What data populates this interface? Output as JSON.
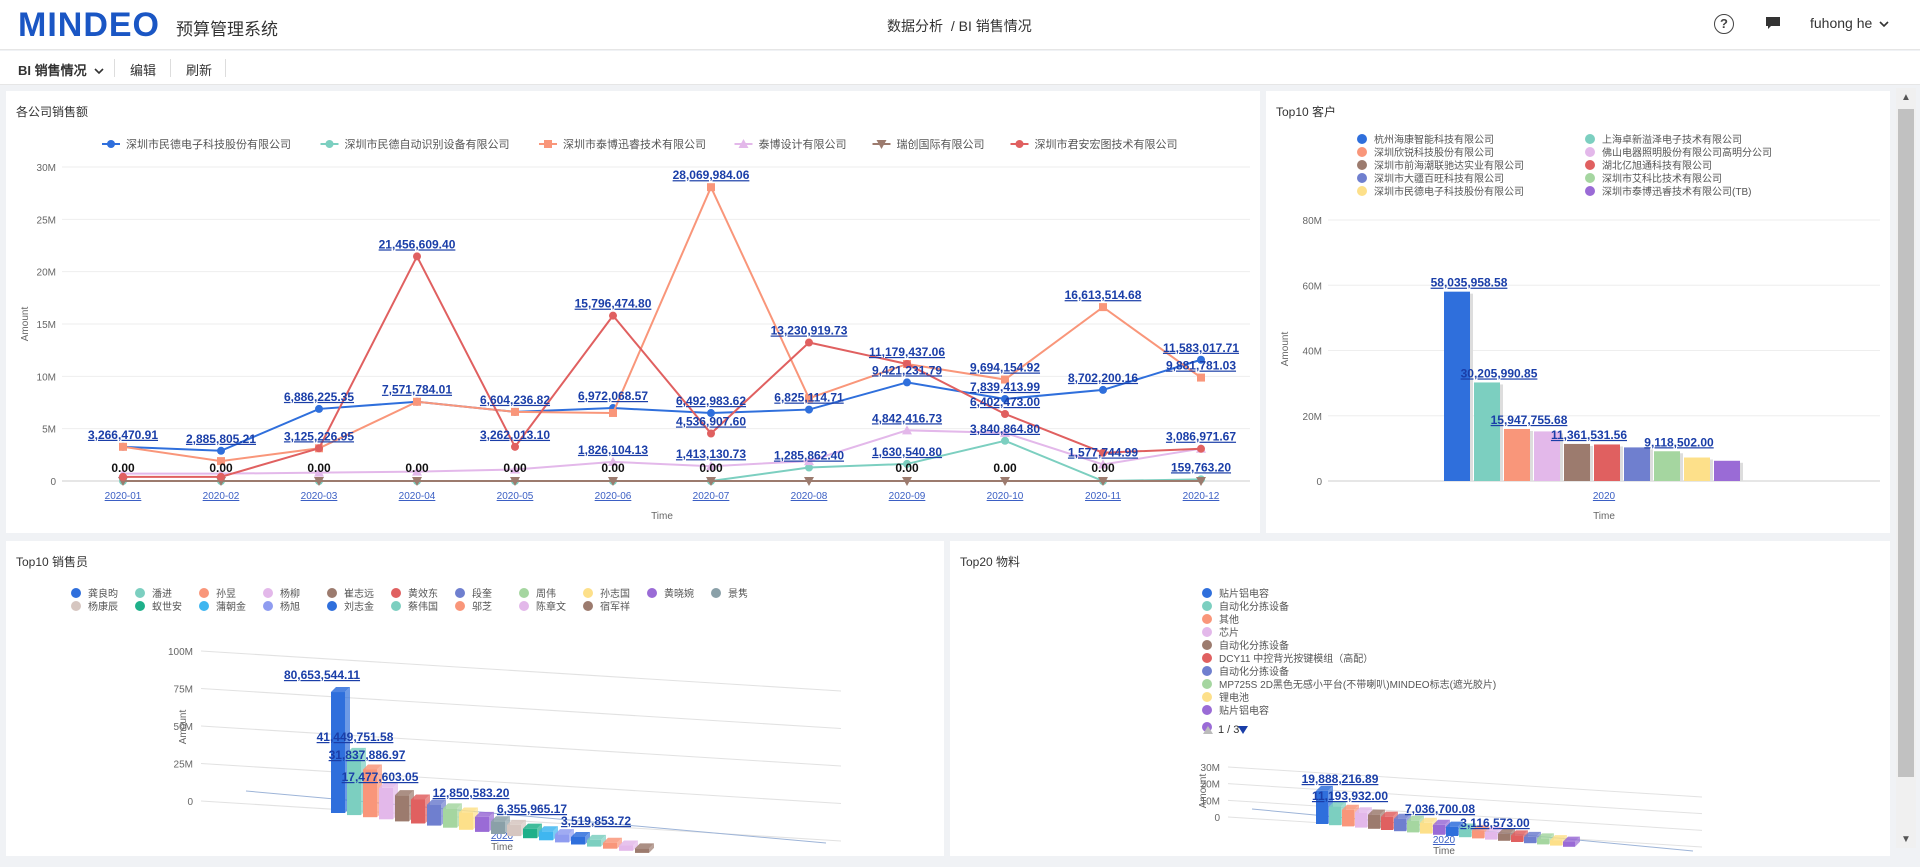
{
  "header": {
    "logo": "MINDEO",
    "system_name": "预算管理系统",
    "breadcrumb": [
      "数据分析",
      "/ BI 销售情况"
    ],
    "user": "fuhong he"
  },
  "toolbar": {
    "dropdown_label": "BI 销售情况",
    "edit_label": "编辑",
    "refresh_label": "刷新"
  },
  "panels": {
    "company_sales_title": "各公司销售额",
    "top10_customers_title": "Top10 客户",
    "top10_sales_title": "Top10 销售员",
    "top20_material_title": "Top20 物料"
  },
  "material_pager": "1 / 3",
  "colors": {
    "accent": "#1a56c4",
    "value_label": "#1a3ea8"
  },
  "chart_data": [
    {
      "type": "line",
      "title": "各公司销售额",
      "xlabel": "Time",
      "ylabel": "Amount",
      "ylim": [
        0,
        30000000
      ],
      "yticks": [
        "0",
        "5M",
        "10M",
        "15M",
        "20M",
        "25M",
        "30M"
      ],
      "categories": [
        "2020-01",
        "2020-02",
        "2020-03",
        "2020-04",
        "2020-05",
        "2020-06",
        "2020-07",
        "2020-08",
        "2020-09",
        "2020-10",
        "2020-11",
        "2020-12"
      ],
      "legend_position": "top",
      "series": [
        {
          "name": "深圳市民德电子科技股份有限公司",
          "color": "#2f6fdc",
          "marker": "circle",
          "values": [
            3266470.91,
            2885805.21,
            6886225.35,
            7571784.01,
            6604236.82,
            6972068.57,
            6492983.62,
            6825114.71,
            9421231.79,
            7839413.99,
            8702200.16,
            11583017.71
          ]
        },
        {
          "name": "深圳市民德自动识别设备有限公司",
          "color": "#7ccfc0",
          "marker": "circle",
          "values": [
            0,
            0,
            0,
            0,
            0,
            0,
            0,
            1285862.4,
            1630540.8,
            3840864.8,
            0,
            159763.2
          ]
        },
        {
          "name": "深圳市泰博迅睿技术有限公司",
          "color": "#f9967a",
          "marker": "square",
          "values": [
            3266470.91,
            1900000,
            3125226.95,
            7571784.01,
            6604236.82,
            6500000,
            28069984.06,
            7900000,
            11179437.06,
            9694154.92,
            16613514.68,
            9881781.03
          ]
        },
        {
          "name": "泰博设计有限公司",
          "color": "#e3b8ea",
          "marker": "triangle",
          "values": [
            700000,
            700000,
            800000,
            900000,
            1100000,
            1826104.13,
            1413130.73,
            1900000,
            4842416.73,
            4600000,
            1577744.99,
            3086971.67
          ]
        },
        {
          "name": "瑞创国际有限公司",
          "color": "#9c7b6e",
          "marker": "triangle-down",
          "values": [
            0,
            0,
            0,
            0,
            0,
            0,
            0,
            0,
            0,
            0,
            0,
            0
          ]
        },
        {
          "name": "深圳市君安宏图技术有限公司",
          "color": "#e06060",
          "marker": "circle",
          "values": [
            400000,
            400000,
            3125226.95,
            21456609.4,
            3262013.1,
            15796474.8,
            4536907.6,
            13230919.73,
            11179437.06,
            6402473.0,
            2700000,
            3086971.67
          ]
        }
      ],
      "data_labels": [
        {
          "text": "3,266,470.91",
          "x": "2020-01",
          "y": 3266470.91
        },
        {
          "text": "2,885,805.21",
          "x": "2020-02",
          "y": 2885805.21
        },
        {
          "text": "6,886,225.35",
          "x": "2020-03",
          "y": 6886225.35
        },
        {
          "text": "3,125,226.95",
          "x": "2020-03",
          "y": 3125226.95
        },
        {
          "text": "21,456,609.40",
          "x": "2020-04",
          "y": 21456609.4
        },
        {
          "text": "7,571,784.01",
          "x": "2020-04",
          "y": 7571784.01
        },
        {
          "text": "6,604,236.82",
          "x": "2020-05",
          "y": 6604236.82
        },
        {
          "text": "3,262,013.10",
          "x": "2020-05",
          "y": 3262013.1
        },
        {
          "text": "15,796,474.80",
          "x": "2020-06",
          "y": 15796474.8
        },
        {
          "text": "6,972,068.57",
          "x": "2020-06",
          "y": 6972068.57
        },
        {
          "text": "1,826,104.13",
          "x": "2020-06",
          "y": 1826104.13
        },
        {
          "text": "28,069,984.06",
          "x": "2020-07",
          "y": 28069984.06
        },
        {
          "text": "6,492,983.62",
          "x": "2020-07",
          "y": 6492983.62
        },
        {
          "text": "4,536,907.60",
          "x": "2020-07",
          "y": 4536907.6
        },
        {
          "text": "1,413,130.73",
          "x": "2020-07",
          "y": 1413130.73
        },
        {
          "text": "13,230,919.73",
          "x": "2020-08",
          "y": 13230919.73
        },
        {
          "text": "6,825,114.71",
          "x": "2020-08",
          "y": 6825114.71
        },
        {
          "text": "1,285,862.40",
          "x": "2020-08",
          "y": 1285862.4
        },
        {
          "text": "11,179,437.06",
          "x": "2020-09",
          "y": 11179437.06
        },
        {
          "text": "9,421,231.79",
          "x": "2020-09",
          "y": 9421231.79
        },
        {
          "text": "4,842,416.73",
          "x": "2020-09",
          "y": 4842416.73
        },
        {
          "text": "1,630,540.80",
          "x": "2020-09",
          "y": 1630540.8
        },
        {
          "text": "9,694,154.92",
          "x": "2020-10",
          "y": 9694154.92
        },
        {
          "text": "7,839,413.99",
          "x": "2020-10",
          "y": 7839413.99
        },
        {
          "text": "6,402,473.00",
          "x": "2020-10",
          "y": 6402473.0
        },
        {
          "text": "3,840,864.80",
          "x": "2020-10",
          "y": 3840864.8
        },
        {
          "text": "16,613,514.68",
          "x": "2020-11",
          "y": 16613514.68
        },
        {
          "text": "8,702,200.16",
          "x": "2020-11",
          "y": 8702200.16
        },
        {
          "text": "1,577,744.99",
          "x": "2020-11",
          "y": 1577744.99
        },
        {
          "text": "11,583,017.71",
          "x": "2020-12",
          "y": 11583017.71
        },
        {
          "text": "9,881,781.03",
          "x": "2020-12",
          "y": 9881781.03
        },
        {
          "text": "3,086,971.67",
          "x": "2020-12",
          "y": 3086971.67
        },
        {
          "text": "159,763.20",
          "x": "2020-12",
          "y": 159763.2
        }
      ],
      "zero_label": "0.00",
      "zero_label_months": [
        "2020-01",
        "2020-02",
        "2020-03",
        "2020-04",
        "2020-05",
        "2020-06",
        "2020-07",
        "2020-09",
        "2020-10",
        "2020-11"
      ]
    },
    {
      "type": "bar",
      "title": "Top10 客户",
      "xlabel": "Time",
      "ylabel": "Amount",
      "ylim": [
        0,
        80000000
      ],
      "yticks": [
        "0",
        "20M",
        "40M",
        "60M",
        "80M"
      ],
      "categories": [
        "2020"
      ],
      "series": [
        {
          "name": "杭州海康智能科技有限公司",
          "color": "#2f6fdc",
          "values": [
            58035958.58
          ]
        },
        {
          "name": "上海卓新溢泽电子技术有限公司",
          "color": "#7ccfc0",
          "values": [
            30205990.85
          ]
        },
        {
          "name": "深圳欣锐科技股份有限公司",
          "color": "#f9967a",
          "values": [
            15947755.68
          ]
        },
        {
          "name": "佛山电器照明股份有限公司高明分公司",
          "color": "#e3b8ea",
          "values": [
            15200000
          ]
        },
        {
          "name": "深圳市前海潮联驰达实业有限公司",
          "color": "#9c7b6e",
          "values": [
            11361531.56
          ]
        },
        {
          "name": "湖北亿旭通科技有限公司",
          "color": "#e06060",
          "values": [
            11200000
          ]
        },
        {
          "name": "深圳市大疆百旺科技有限公司",
          "color": "#6f7fcf",
          "values": [
            10300000
          ]
        },
        {
          "name": "深圳市艾科比技术有限公司",
          "color": "#a5d6a0",
          "values": [
            9118502.0
          ]
        },
        {
          "name": "深圳市民德电子科技股份有限公司",
          "color": "#fde08a",
          "values": [
            7200000
          ]
        },
        {
          "name": "深圳市泰博迅睿技术有限公司(TB)",
          "color": "#9a6bd6",
          "values": [
            6200000
          ]
        }
      ],
      "data_labels": [
        "58,035,958.58",
        "30,205,990.85",
        "15,947,755.68",
        "11,361,531.56",
        "9,118,502.00"
      ]
    },
    {
      "type": "bar",
      "title": "Top10 销售员",
      "xlabel": "Time",
      "ylabel": "Amount",
      "ylim": [
        0,
        100000000
      ],
      "yticks": [
        "0",
        "25M",
        "50M",
        "75M",
        "100M"
      ],
      "categories": [
        "2020"
      ],
      "series": [
        {
          "name": "龚良昀",
          "color": "#2f6fdc",
          "values": [
            80653544.11
          ]
        },
        {
          "name": "潘进",
          "color": "#7ccfc0",
          "values": [
            41449751.58
          ]
        },
        {
          "name": "孙昱",
          "color": "#f9967a",
          "values": [
            31837886.97
          ]
        },
        {
          "name": "杨柳",
          "color": "#e3b8ea",
          "values": [
            21000000
          ]
        },
        {
          "name": "崔志远",
          "color": "#9c7b6e",
          "values": [
            17477603.05
          ]
        },
        {
          "name": "黄效东",
          "color": "#e06060",
          "values": [
            16000000
          ]
        },
        {
          "name": "段奎",
          "color": "#6f7fcf",
          "values": [
            14000000
          ]
        },
        {
          "name": "周伟",
          "color": "#a5d6a0",
          "values": [
            12850583.2
          ]
        },
        {
          "name": "孙志国",
          "color": "#fde08a",
          "values": [
            11500000
          ]
        },
        {
          "name": "黄晓婉",
          "color": "#9a6bd6",
          "values": [
            10000000
          ]
        },
        {
          "name": "景隽",
          "color": "#8aa0a8",
          "values": [
            8500000
          ]
        },
        {
          "name": "杨康辰",
          "color": "#d6c6c0",
          "values": [
            7500000
          ]
        },
        {
          "name": "蚁世安",
          "color": "#1fb08a",
          "values": [
            6355965.17
          ]
        },
        {
          "name": "蒲朝金",
          "color": "#3fb6f0",
          "values": [
            6000000
          ]
        },
        {
          "name": "杨旭",
          "color": "#8f9cf0",
          "values": [
            5500000
          ]
        },
        {
          "name": "刘志金",
          "color": "#2f6fdc",
          "values": [
            5000000
          ]
        },
        {
          "name": "蔡伟国",
          "color": "#7ccfc0",
          "values": [
            4500000
          ]
        },
        {
          "name": "邬芝",
          "color": "#f9967a",
          "values": [
            4000000
          ]
        },
        {
          "name": "陈章文",
          "color": "#e3b8ea",
          "values": [
            3519853.72
          ]
        },
        {
          "name": "宿军祥",
          "color": "#9c7b6e",
          "values": [
            3000000
          ]
        }
      ],
      "data_labels": [
        "80,653,544.11",
        "41,449,751.58",
        "31,837,886.97",
        "17,477,603.05",
        "12,850,583.20",
        "6,355,965.17",
        "3,519,853.72"
      ]
    },
    {
      "type": "bar",
      "title": "Top20 物料",
      "xlabel": "Time",
      "ylabel": "Amount",
      "ylim": [
        0,
        30000000
      ],
      "yticks": [
        "0",
        "10M",
        "20M",
        "30M"
      ],
      "categories": [
        "2020"
      ],
      "series": [
        {
          "name": "贴片铝电容",
          "color": "#2f6fdc",
          "values": [
            19888216.89
          ]
        },
        {
          "name": "自动化分拣设备",
          "color": "#7ccfc0",
          "values": [
            11193932.0
          ]
        },
        {
          "name": "其他",
          "color": "#f9967a",
          "values": [
            10000000
          ]
        },
        {
          "name": "芯片",
          "color": "#e3b8ea",
          "values": [
            9200000
          ]
        },
        {
          "name": "自动化分拣设备",
          "color": "#9c7b6e",
          "values": [
            8500000
          ]
        },
        {
          "name": "DCY11 中控背光按键模组（高配）",
          "color": "#e06060",
          "values": [
            8000000
          ]
        },
        {
          "name": "自动化分拣设备",
          "color": "#6f7fcf",
          "values": [
            7500000
          ]
        },
        {
          "name": "MP725S 2D黑色无感小平台(不带喇叭)MINDEO标志(遮光胶片)",
          "color": "#a5d6a0",
          "values": [
            7036700.08
          ]
        },
        {
          "name": "锂电池",
          "color": "#fde08a",
          "values": [
            6500000
          ]
        },
        {
          "name": "贴片铝电容",
          "color": "#9a6bd6",
          "values": [
            6000000
          ]
        }
      ],
      "data_labels": [
        "19,888,216.89",
        "11,193,932.00",
        "7,036,700.08",
        "3,116,573.00"
      ]
    }
  ]
}
